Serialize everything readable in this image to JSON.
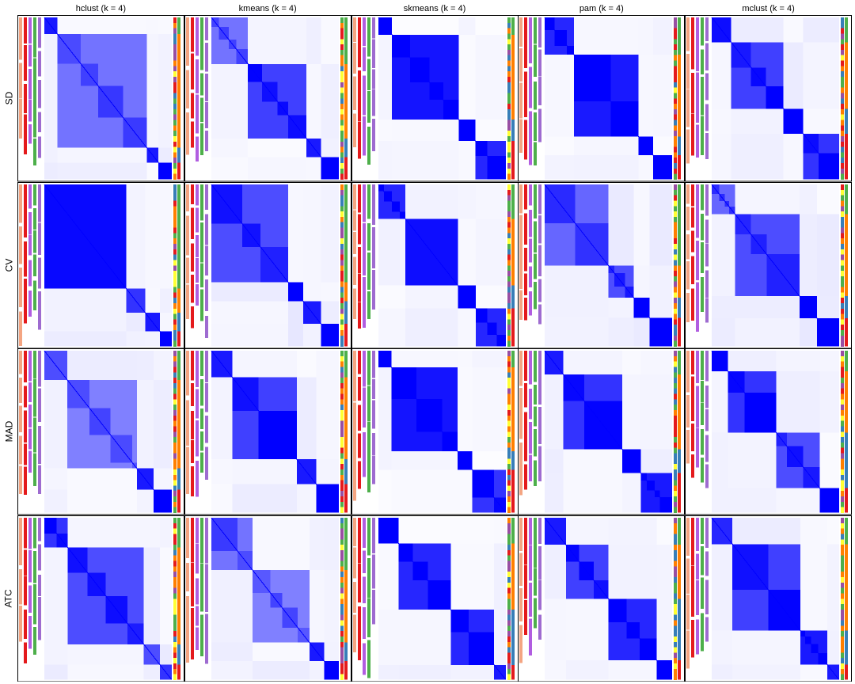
{
  "figure": {
    "columns": [
      "hclust (k = 4)",
      "kmeans (k = 4)",
      "skmeans (k = 4)",
      "pam (k = 4)",
      "mclust (k = 4)"
    ],
    "rows": [
      "SD",
      "CV",
      "MAD",
      "ATC"
    ]
  },
  "colors": {
    "heat_high": "#0000FF",
    "heat_low": "#FFFFFF",
    "panel_border": "#000000",
    "class_1": "#E41A1C",
    "class_2": "#FF7F00",
    "class_3": "#4DAF4A",
    "class_4": "#377EB8",
    "class_5": "#FFFF33",
    "class_6": "#984EA3",
    "anno_salmon": "#F4A582",
    "anno_purple": "#9E6BD0",
    "anno_green": "#4DAF4A",
    "anno_violet": "#B15DE0"
  },
  "chart_data": {
    "type": "heatmap",
    "title": "",
    "xlabel": "",
    "ylabel": "",
    "value_range": [
      0,
      1
    ],
    "row_labels": [
      "SD",
      "CV",
      "MAD",
      "ATC"
    ],
    "column_labels": [
      "hclust (k = 4)",
      "kmeans (k = 4)",
      "skmeans (k = 4)",
      "pam (k = 4)",
      "mclust (k = 4)"
    ],
    "panels": [
      {
        "row": "SD",
        "method": "hclust (k = 4)",
        "cluster_sizes": [
          9,
          61,
          8,
          9
        ],
        "within": [
          0.9,
          0.55,
          0.9,
          1.0
        ],
        "offdiag": 0.06
      },
      {
        "row": "SD",
        "method": "kmeans (k = 4)",
        "cluster_sizes": [
          25,
          40,
          10,
          12
        ],
        "within": [
          0.55,
          0.75,
          0.9,
          1.0
        ],
        "offdiag": 0.05
      },
      {
        "row": "SD",
        "method": "skmeans (k = 4)",
        "cluster_sizes": [
          9,
          44,
          11,
          20
        ],
        "within": [
          1.0,
          0.92,
          1.0,
          0.85
        ],
        "offdiag": 0.04
      },
      {
        "row": "SD",
        "method": "pam (k = 4)",
        "cluster_sizes": [
          20,
          44,
          10,
          13
        ],
        "within": [
          0.85,
          0.9,
          1.0,
          1.0
        ],
        "offdiag": 0.04
      },
      {
        "row": "SD",
        "method": "mclust (k = 4)",
        "cluster_sizes": [
          12,
          32,
          12,
          22
        ],
        "within": [
          0.95,
          0.75,
          1.0,
          0.8
        ],
        "offdiag": 0.06
      },
      {
        "row": "CV",
        "method": "hclust (k = 4)",
        "cluster_sizes": [
          56,
          13,
          10,
          8
        ],
        "within": [
          0.97,
          0.8,
          0.9,
          1.0
        ],
        "offdiag": 0.06
      },
      {
        "row": "CV",
        "method": "kmeans (k = 4)",
        "cluster_sizes": [
          52,
          10,
          12,
          12
        ],
        "within": [
          0.7,
          1.0,
          0.9,
          1.0
        ],
        "offdiag": 0.08
      },
      {
        "row": "CV",
        "method": "skmeans (k = 4)",
        "cluster_sizes": [
          18,
          35,
          12,
          20
        ],
        "within": [
          0.85,
          0.95,
          1.0,
          0.85
        ],
        "offdiag": 0.05
      },
      {
        "row": "CV",
        "method": "pam (k = 4)",
        "cluster_sizes": [
          40,
          16,
          10,
          14
        ],
        "within": [
          0.6,
          0.7,
          1.0,
          1.0
        ],
        "offdiag": 0.07
      },
      {
        "row": "CV",
        "method": "mclust (k = 4)",
        "cluster_sizes": [
          16,
          44,
          12,
          15
        ],
        "within": [
          0.6,
          0.7,
          1.0,
          1.0
        ],
        "offdiag": 0.07
      },
      {
        "row": "MAD",
        "method": "hclust (k = 4)",
        "cluster_sizes": [
          14,
          42,
          10,
          11
        ],
        "within": [
          0.7,
          0.5,
          0.9,
          1.0
        ],
        "offdiag": 0.06
      },
      {
        "row": "MAD",
        "method": "kmeans (k = 4)",
        "cluster_sizes": [
          13,
          40,
          12,
          14
        ],
        "within": [
          0.9,
          0.75,
          0.9,
          1.0
        ],
        "offdiag": 0.06
      },
      {
        "row": "MAD",
        "method": "skmeans (k = 4)",
        "cluster_sizes": [
          9,
          45,
          10,
          23
        ],
        "within": [
          1.0,
          0.92,
          1.0,
          0.8
        ],
        "offdiag": 0.04
      },
      {
        "row": "MAD",
        "method": "pam (k = 4)",
        "cluster_sizes": [
          12,
          38,
          12,
          20
        ],
        "within": [
          0.9,
          0.8,
          1.0,
          0.9
        ],
        "offdiag": 0.06
      },
      {
        "row": "MAD",
        "method": "mclust (k = 4)",
        "cluster_sizes": [
          10,
          30,
          27,
          12
        ],
        "within": [
          1.0,
          0.8,
          0.7,
          1.0
        ],
        "offdiag": 0.06
      },
      {
        "row": "ATC",
        "method": "hclust (k = 4)",
        "cluster_sizes": [
          16,
          52,
          11,
          8
        ],
        "within": [
          0.8,
          0.7,
          0.7,
          0.8
        ],
        "offdiag": 0.07
      },
      {
        "row": "ATC",
        "method": "kmeans (k = 4)",
        "cluster_sizes": [
          28,
          39,
          10,
          10
        ],
        "within": [
          0.55,
          0.5,
          0.9,
          1.0
        ],
        "offdiag": 0.07
      },
      {
        "row": "ATC",
        "method": "skmeans (k = 4)",
        "cluster_sizes": [
          14,
          36,
          30,
          8
        ],
        "within": [
          1.0,
          0.85,
          0.85,
          0.9
        ],
        "offdiag": 0.05
      },
      {
        "row": "ATC",
        "method": "pam (k = 4)",
        "cluster_sizes": [
          14,
          28,
          32,
          10
        ],
        "within": [
          0.9,
          0.75,
          0.85,
          1.0
        ],
        "offdiag": 0.05
      },
      {
        "row": "ATC",
        "method": "mclust (k = 4)",
        "cluster_sizes": [
          14,
          46,
          18,
          8
        ],
        "within": [
          0.85,
          0.75,
          0.9,
          0.9
        ],
        "offdiag": 0.06
      }
    ]
  }
}
